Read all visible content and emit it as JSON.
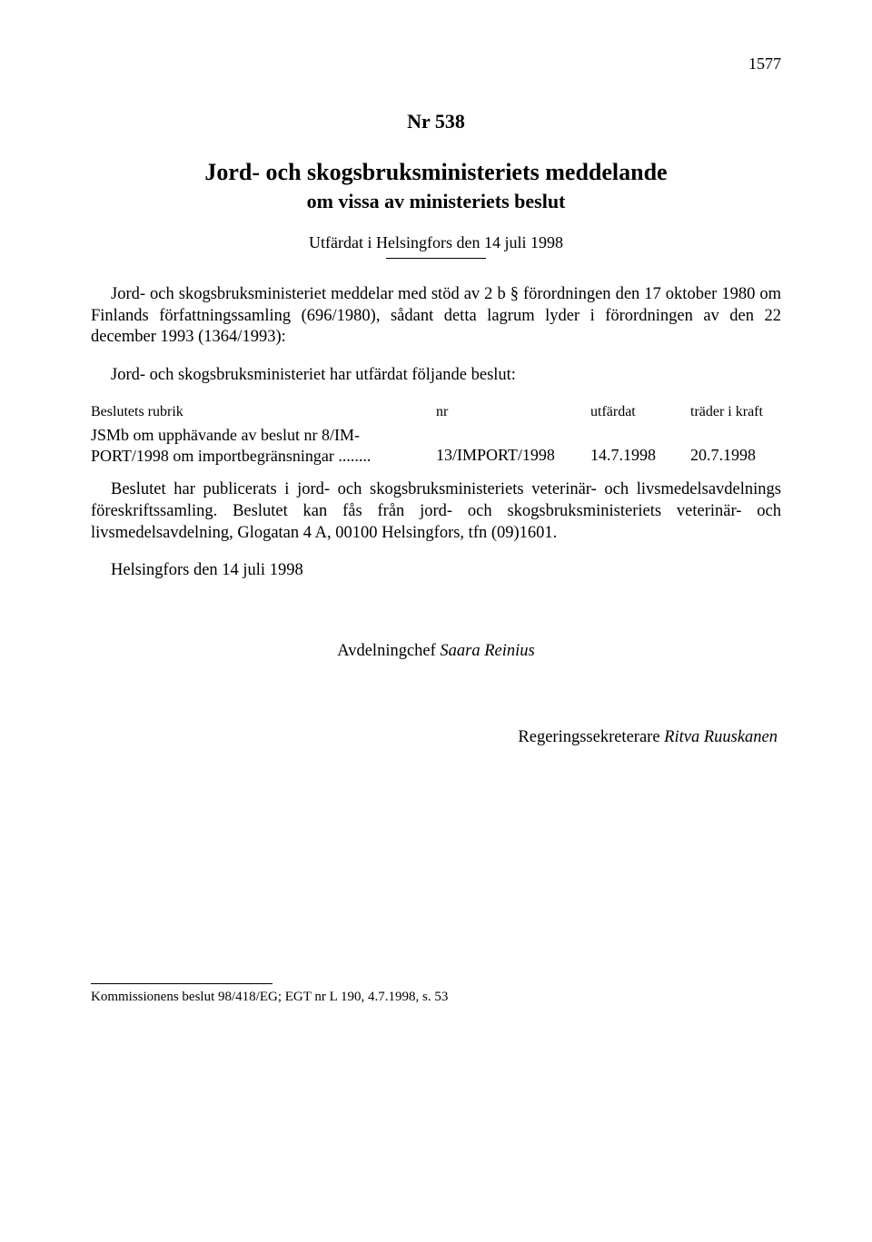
{
  "page_number": "1577",
  "doc_number": "Nr 538",
  "heading": "Jord- och skogsbruksministeriets meddelande",
  "subheading": "om vissa av ministeriets beslut",
  "issued_line": "Utfärdat i Helsingfors den 14 juli 1998",
  "preamble": "Jord- och skogsbruksministeriet meddelar med stöd av 2 b § förordningen den 17 oktober 1980 om Finlands författningssamling (696/1980), sådant detta lagrum lyder i förordningen av den 22 december 1993 (1364/1993):",
  "intro_line": "Jord- och skogsbruksministeriet har utfärdat följande beslut:",
  "table": {
    "headers": {
      "col1": "Beslutets rubrik",
      "col2": "nr",
      "col3": "utfärdat",
      "col4": "träder i kraft"
    },
    "row": {
      "col1a": "JSMb om upphävande av beslut nr 8/IM-",
      "col1b": "PORT/1998 om importbegränsningar ........",
      "col2": "13/IMPORT/1998",
      "col3": "14.7.1998",
      "col4": "20.7.1998"
    }
  },
  "body_para": "Beslutet har publicerats i jord- och skogsbruksministeriets veterinär- och livsmedelsavdelnings föreskriftssamling. Beslutet kan fås från jord- och skogsbruksministeriets veterinär- och livsmedelsavdelning, Glogatan 4 A, 00100 Helsingfors, tfn (09)1601.",
  "closing_line": "Helsingfors den 14 juli 1998",
  "signature1_role": "Avdelningchef ",
  "signature1_name": "Saara Reinius",
  "signature2_role": "Regeringssekreterare ",
  "signature2_name": "Ritva Ruuskanen",
  "footnote": "Kommissionens beslut 98/418/EG; EGT nr L 190, 4.7.1998, s. 53"
}
